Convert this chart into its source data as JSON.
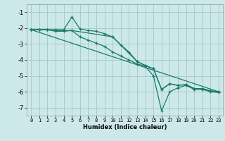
{
  "background_color": "#cce8e8",
  "grid_color": "#aacccc",
  "line_color": "#1a7a6a",
  "xlim": [
    -0.5,
    23.5
  ],
  "ylim": [
    -7.5,
    -0.5
  ],
  "yticks": [
    -7,
    -6,
    -5,
    -4,
    -3,
    -2,
    -1
  ],
  "xlabel": "Humidex (Indice chaleur)",
  "line1": {
    "x": [
      0,
      1,
      2,
      3,
      4,
      5,
      6,
      7,
      8,
      9,
      10,
      11,
      12,
      13,
      14,
      15,
      16,
      17,
      18,
      19,
      20,
      21,
      22,
      23
    ],
    "y": [
      -2.1,
      -2.1,
      -2.1,
      -2.1,
      -2.1,
      -1.3,
      -2.05,
      -2.15,
      -2.2,
      -2.35,
      -2.55,
      -3.05,
      -3.5,
      -4.1,
      -4.35,
      -4.55,
      -5.85,
      -5.5,
      -5.6,
      -5.55,
      -5.8,
      -5.8,
      -5.95,
      -6.0
    ]
  },
  "line2": {
    "x": [
      0,
      1,
      2,
      3,
      4,
      5,
      6,
      7,
      8,
      9,
      10,
      11,
      12,
      13,
      14,
      15,
      16,
      17,
      18,
      19,
      20,
      21,
      22,
      23
    ],
    "y": [
      -2.1,
      -2.1,
      -2.1,
      -2.2,
      -2.2,
      -2.15,
      -2.55,
      -2.75,
      -2.95,
      -3.15,
      -3.5,
      -3.75,
      -4.0,
      -4.25,
      -4.4,
      -5.0,
      -7.2,
      -6.0,
      -5.75,
      -5.6,
      -5.85,
      -5.85,
      -6.0,
      -6.05
    ]
  },
  "line3": {
    "x": [
      0,
      1,
      2,
      3,
      4,
      5,
      10,
      13,
      14,
      15,
      16,
      17,
      18,
      19,
      20,
      21,
      22,
      23
    ],
    "y": [
      -2.1,
      -2.1,
      -2.1,
      -2.15,
      -2.15,
      -2.15,
      -2.55,
      -4.1,
      -4.35,
      -4.55,
      -5.85,
      -5.5,
      -5.6,
      -5.55,
      -5.8,
      -5.8,
      -5.95,
      -6.0
    ]
  },
  "line4": {
    "x": [
      0,
      23
    ],
    "y": [
      -2.1,
      -6.0
    ]
  }
}
